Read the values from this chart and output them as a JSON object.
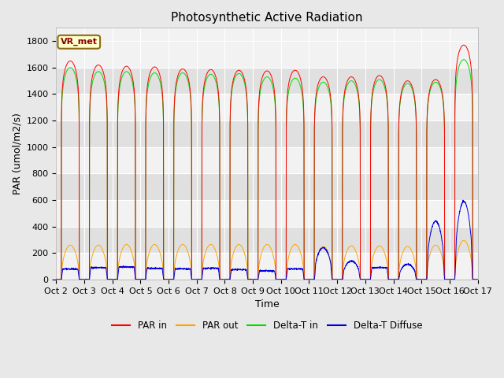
{
  "title": "Photosynthetic Active Radiation",
  "ylabel": "PAR (umol/m2/s)",
  "xlabel": "Time",
  "annotation": "VR_met",
  "ylim": [
    0,
    1900
  ],
  "yticks": [
    0,
    200,
    400,
    600,
    800,
    1000,
    1200,
    1400,
    1600,
    1800
  ],
  "xtick_labels": [
    "Oct 2",
    "Oct 3",
    "Oct 4",
    "Oct 5",
    "Oct 6",
    "Oct 7",
    "Oct 8",
    "Oct 9",
    "Oct 10",
    "Oct 11",
    "Oct 12",
    "Oct 13",
    "Oct 14",
    "Oct 15",
    "Oct 16",
    "Oct 17"
  ],
  "n_days": 15,
  "legend": [
    "PAR in",
    "PAR out",
    "Delta-T in",
    "Delta-T Diffuse"
  ],
  "colors": {
    "PAR in": "#ff0000",
    "PAR out": "#ffa500",
    "Delta-T in": "#00dd00",
    "Delta-T Diffuse": "#0000dd"
  },
  "par_in_peaks": [
    1650,
    1620,
    1610,
    1605,
    1590,
    1585,
    1580,
    1575,
    1580,
    1530,
    1530,
    1540,
    1500,
    1510,
    1770
  ],
  "par_out_peaks": [
    260,
    260,
    265,
    265,
    265,
    265,
    265,
    265,
    265,
    250,
    255,
    255,
    250,
    260,
    295
  ],
  "delta_t_in_peaks": [
    1600,
    1570,
    1570,
    1560,
    1560,
    1550,
    1555,
    1530,
    1520,
    1490,
    1500,
    1510,
    1480,
    1490,
    1660
  ],
  "delta_t_diff_day": [
    80,
    90,
    95,
    85,
    80,
    85,
    75,
    65,
    80,
    120,
    90,
    90,
    100,
    120,
    80
  ],
  "delta_t_diff_peak": [
    80,
    90,
    95,
    85,
    80,
    85,
    75,
    65,
    80,
    240,
    140,
    90,
    115,
    440,
    590
  ],
  "background_color": "#e8e8e8",
  "plot_bg_light": "#f2f2f2",
  "plot_bg_dark": "#e0e0e0",
  "grid_color": "#ffffff",
  "title_fontsize": 11,
  "label_fontsize": 9,
  "tick_fontsize": 8,
  "annotation_fontsize": 8,
  "figsize": [
    6.4,
    4.8
  ],
  "dpi": 100
}
